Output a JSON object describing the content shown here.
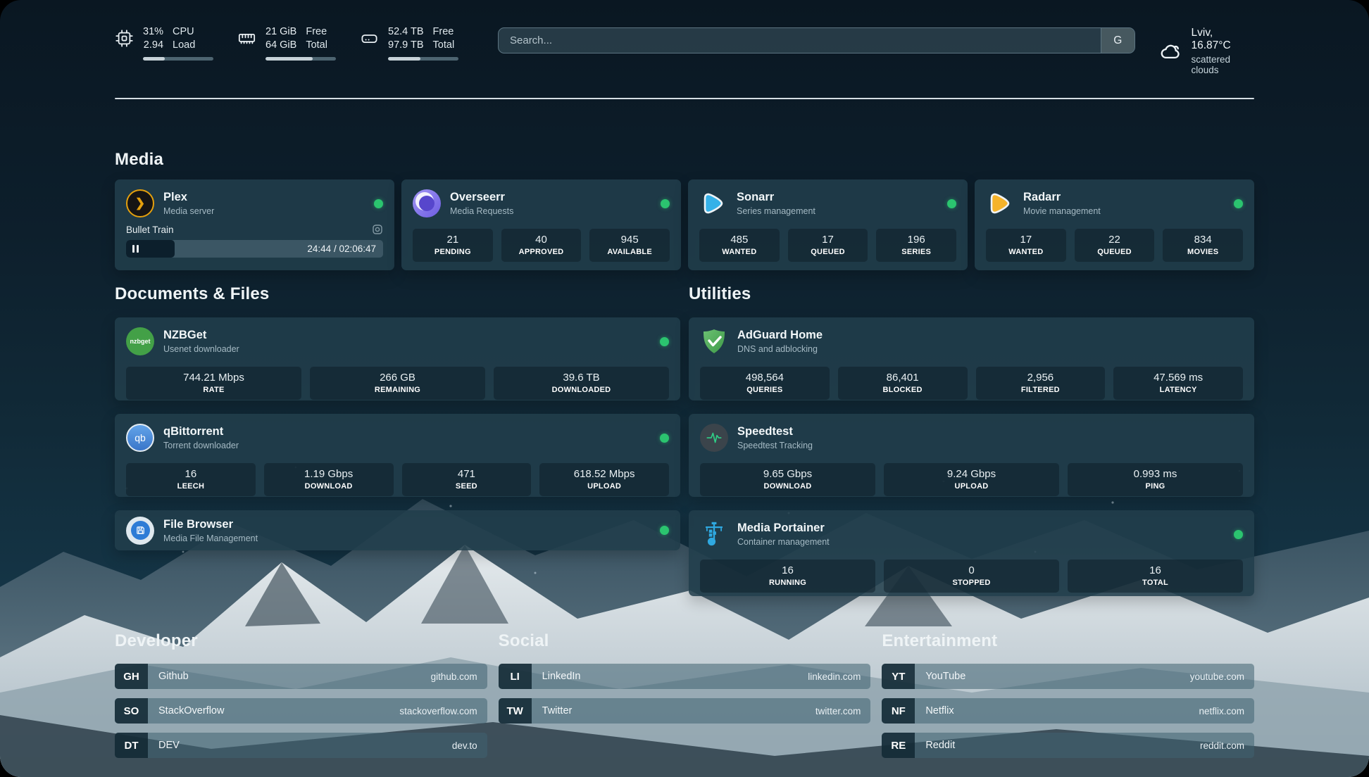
{
  "header": {
    "system_stats": [
      {
        "icon": "cpu-icon",
        "value_primary": "31%",
        "value_secondary": "2.94",
        "label_primary": "CPU",
        "label_secondary": "Load",
        "progress_pct": 31
      },
      {
        "icon": "memory-icon",
        "value_primary": "21 GiB",
        "value_secondary": "64 GiB",
        "label_primary": "Free",
        "label_secondary": "Total",
        "progress_pct": 67
      },
      {
        "icon": "disk-icon",
        "value_primary": "52.4 TB",
        "value_secondary": "97.9 TB",
        "label_primary": "Free",
        "label_secondary": "Total",
        "progress_pct": 46
      }
    ],
    "search": {
      "placeholder": "Search...",
      "engine_button": "G"
    },
    "weather": {
      "summary": "Lviv, 16.87°C",
      "condition": "scattered clouds"
    }
  },
  "media": {
    "title": "Media",
    "plex": {
      "name": "Plex",
      "desc": "Media server",
      "now_playing": {
        "title": "Bullet Train",
        "time": "24:44 / 02:06:47",
        "progress_pct": 19
      }
    },
    "overseerr": {
      "name": "Overseerr",
      "desc": "Media Requests",
      "stats": [
        {
          "value": "21",
          "label": "PENDING"
        },
        {
          "value": "40",
          "label": "APPROVED"
        },
        {
          "value": "945",
          "label": "AVAILABLE"
        }
      ]
    },
    "sonarr": {
      "name": "Sonarr",
      "desc": "Series management",
      "stats": [
        {
          "value": "485",
          "label": "WANTED"
        },
        {
          "value": "17",
          "label": "QUEUED"
        },
        {
          "value": "196",
          "label": "SERIES"
        }
      ]
    },
    "radarr": {
      "name": "Radarr",
      "desc": "Movie management",
      "stats": [
        {
          "value": "17",
          "label": "WANTED"
        },
        {
          "value": "22",
          "label": "QUEUED"
        },
        {
          "value": "834",
          "label": "MOVIES"
        }
      ]
    }
  },
  "documents": {
    "title": "Documents & Files",
    "nzbget": {
      "name": "NZBGet",
      "desc": "Usenet downloader",
      "stats": [
        {
          "value": "744.21 Mbps",
          "label": "RATE"
        },
        {
          "value": "266 GB",
          "label": "REMAINING"
        },
        {
          "value": "39.6 TB",
          "label": "DOWNLOADED"
        }
      ]
    },
    "qbittorrent": {
      "name": "qBittorrent",
      "desc": "Torrent downloader",
      "stats": [
        {
          "value": "16",
          "label": "LEECH"
        },
        {
          "value": "1.19 Gbps",
          "label": "DOWNLOAD"
        },
        {
          "value": "471",
          "label": "SEED"
        },
        {
          "value": "618.52 Mbps",
          "label": "UPLOAD"
        }
      ]
    },
    "filebrowser": {
      "name": "File Browser",
      "desc": "Media File Management"
    }
  },
  "utilities": {
    "title": "Utilities",
    "adguard": {
      "name": "AdGuard Home",
      "desc": "DNS and adblocking",
      "stats": [
        {
          "value": "498,564",
          "label": "QUERIES"
        },
        {
          "value": "86,401",
          "label": "BLOCKED"
        },
        {
          "value": "2,956",
          "label": "FILTERED"
        },
        {
          "value": "47.569 ms",
          "label": "LATENCY"
        }
      ]
    },
    "speedtest": {
      "name": "Speedtest",
      "desc": "Speedtest Tracking",
      "stats": [
        {
          "value": "9.65 Gbps",
          "label": "DOWNLOAD"
        },
        {
          "value": "9.24 Gbps",
          "label": "UPLOAD"
        },
        {
          "value": "0.993 ms",
          "label": "PING"
        }
      ]
    },
    "portainer": {
      "name": "Media Portainer",
      "desc": "Container management",
      "stats": [
        {
          "value": "16",
          "label": "RUNNING"
        },
        {
          "value": "0",
          "label": "STOPPED"
        },
        {
          "value": "16",
          "label": "TOTAL"
        }
      ]
    }
  },
  "bookmarks": {
    "developer": {
      "title": "Developer",
      "links": [
        {
          "abbr": "GH",
          "name": "Github",
          "url": "github.com"
        },
        {
          "abbr": "SO",
          "name": "StackOverflow",
          "url": "stackoverflow.com"
        },
        {
          "abbr": "DT",
          "name": "DEV",
          "url": "dev.to"
        }
      ]
    },
    "social": {
      "title": "Social",
      "links": [
        {
          "abbr": "LI",
          "name": "LinkedIn",
          "url": "linkedin.com"
        },
        {
          "abbr": "TW",
          "name": "Twitter",
          "url": "twitter.com"
        }
      ]
    },
    "entertainment": {
      "title": "Entertainment",
      "links": [
        {
          "abbr": "YT",
          "name": "YouTube",
          "url": "youtube.com"
        },
        {
          "abbr": "NF",
          "name": "Netflix",
          "url": "netflix.com"
        },
        {
          "abbr": "RE",
          "name": "Reddit",
          "url": "reddit.com"
        }
      ]
    }
  },
  "icons": {
    "nzbget_badge": "nzbget",
    "qbittorrent_badge": "qb",
    "plex_glyph": "❯"
  },
  "colors": {
    "accent_green": "#2bc46f",
    "plex_orange": "#e5a00d",
    "sonarr_cyan": "#35b1e8",
    "radarr_orange": "#f5b32a",
    "overseerr_purple": "#8b7cf0",
    "adguard_green": "#53b560",
    "portainer_blue": "#2fa8e0"
  }
}
